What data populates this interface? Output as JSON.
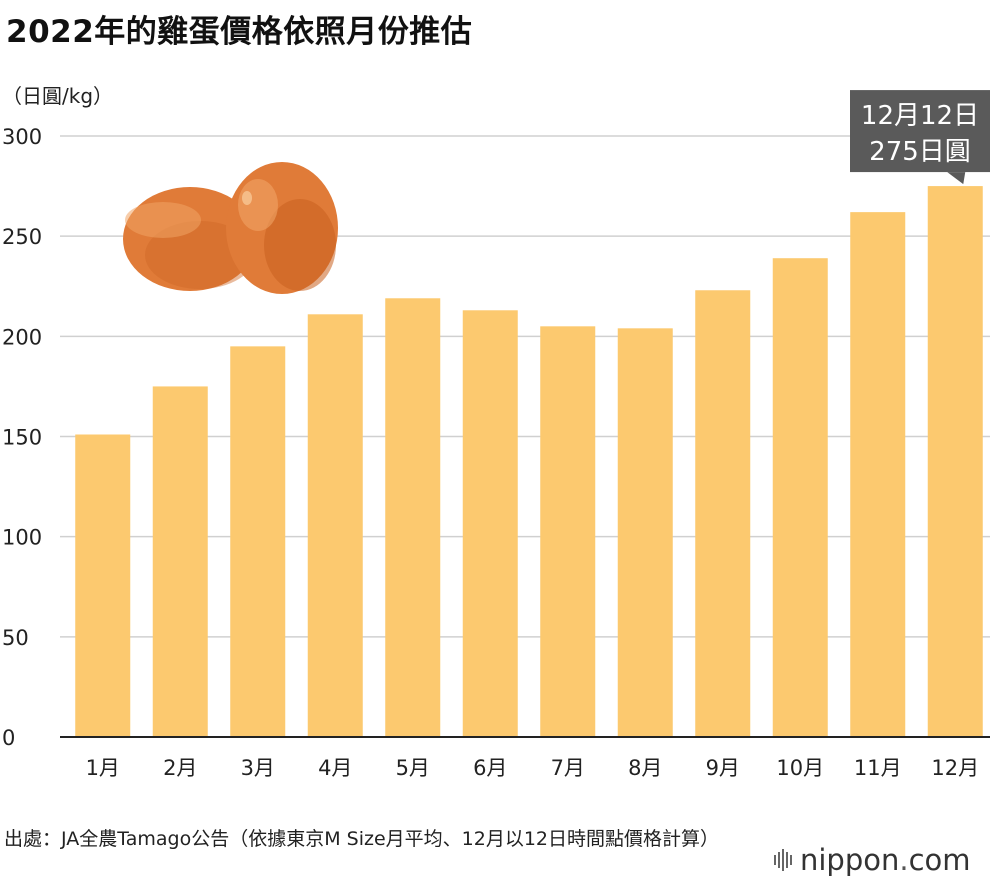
{
  "header": {
    "title": "2022年的雞蛋價格依照月份推估",
    "unit": "（日圓/kg）"
  },
  "chart_data": {
    "type": "bar",
    "title": "2022年的雞蛋價格依照月份推估",
    "ylabel": "（日圓/kg）",
    "xlabel": "",
    "categories": [
      "1月",
      "2月",
      "3月",
      "4月",
      "5月",
      "6月",
      "7月",
      "8月",
      "9月",
      "10月",
      "11月",
      "12月"
    ],
    "values": [
      151,
      175,
      195,
      211,
      219,
      213,
      205,
      204,
      223,
      239,
      262,
      275
    ],
    "ylim": [
      0,
      300
    ],
    "yticks": [
      0,
      50,
      100,
      150,
      200,
      250,
      300
    ],
    "grid": true,
    "bar_color": "#fcc96f",
    "annotation": {
      "category_index": 11,
      "line1": "12月12日",
      "line2": "275日圓",
      "bg_color": "#5a5a5a",
      "text_color": "#ffffff"
    }
  },
  "footer": {
    "source": "出處：JA全農Tamago公告（依據東京M Size月平均、12月以12日時間點價格計算）",
    "logo_main": "nippon",
    "logo_dot": ".",
    "logo_tld": "com"
  },
  "colors": {
    "egg_main": "#e07b38",
    "egg_dark": "#c8601f",
    "egg_light": "#f0a465",
    "grid": "#d0d0d0",
    "axis": "#222222"
  }
}
